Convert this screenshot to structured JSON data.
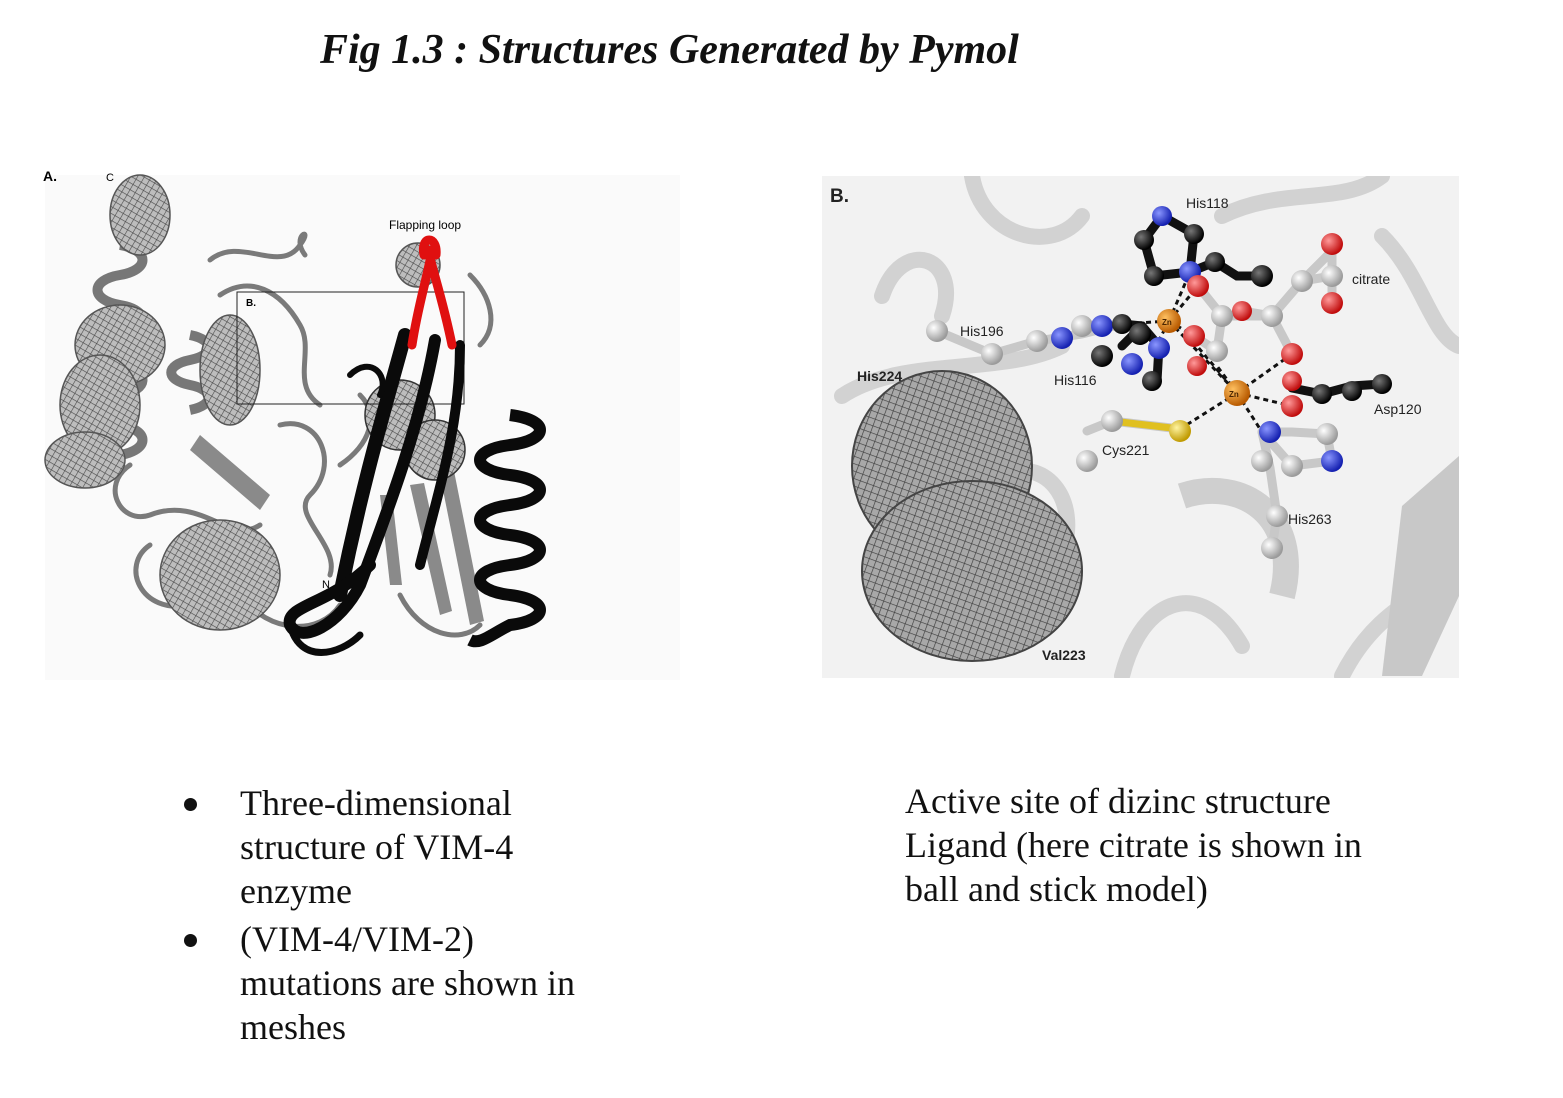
{
  "title": "Fig 1.3 : Structures Generated by Pymol",
  "panel_a": {
    "panel_label": "A.",
    "c_terminus_label": "C",
    "n_terminus_label": "N",
    "box_label": "B.",
    "flapping_loop_label": "Flapping loop"
  },
  "panel_b": {
    "panel_label": "B.",
    "labels": {
      "his118": "His118",
      "citrate": "citrate",
      "his196": "His196",
      "his224": "His224",
      "his116": "His116",
      "asp120": "Asp120",
      "cys221": "Cys221",
      "his263": "His263",
      "val223": "Val223",
      "zn1": "Zn",
      "zn2": "Zn"
    }
  },
  "caption_a": {
    "bullets": [
      "Three-dimensional structure of VIM-4 enzyme",
      "(VIM-4/VIM-2) mutations are shown in meshes"
    ]
  },
  "caption_b": {
    "lines": [
      "Active site of dizinc structure",
      "Ligand (here citrate is shown in",
      "ball and stick model)"
    ]
  },
  "colors": {
    "mesh": "#555555",
    "ribbon_gray": "#7a7a7a",
    "ribbon_black": "#0a0a0a",
    "flapping_loop": "#e01010",
    "nitrogen": "#2030d0",
    "oxygen": "#d81818",
    "zinc": "#e08a10",
    "sulfur": "#e0c020",
    "carbon_light": "#c8c8c8"
  }
}
